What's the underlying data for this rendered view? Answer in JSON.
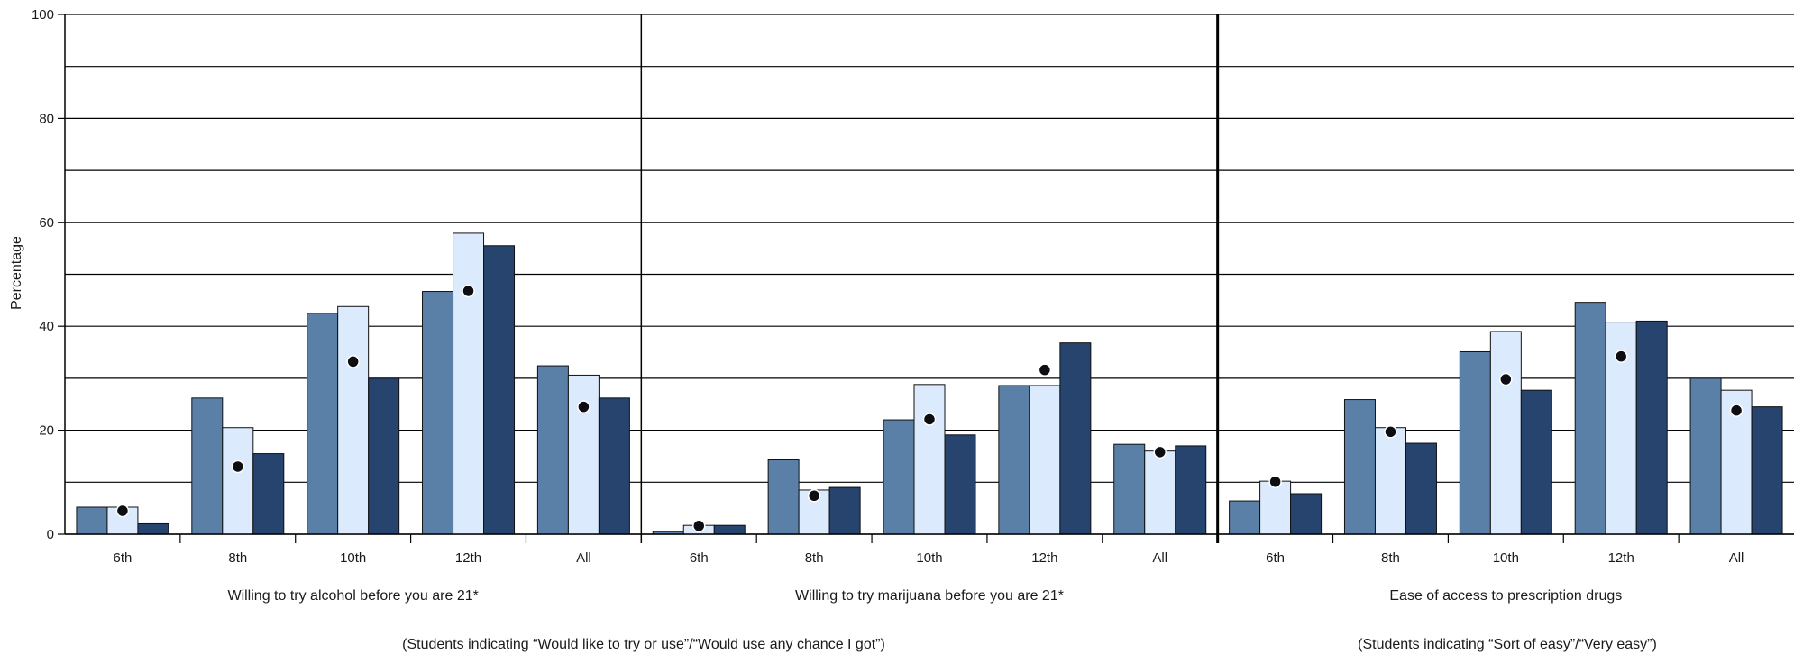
{
  "chart_data": {
    "type": "bar",
    "ylabel": "Percentage",
    "ylim": [
      0,
      100
    ],
    "yticks": [
      0,
      20,
      40,
      60,
      80,
      100
    ],
    "grid": true,
    "colors": [
      "#5b80a8",
      "#dbeafc",
      "#26446d"
    ],
    "marker_color": "#0d0d12",
    "categories": [
      "6th",
      "8th",
      "10th",
      "12th",
      "All"
    ],
    "panels": [
      {
        "title": "Willing to try alcohol before you are 21*",
        "series": [
          {
            "values": [
              5.2,
              26.2,
              42.5,
              46.7,
              32.4
            ]
          },
          {
            "values": [
              5.2,
              20.5,
              43.8,
              57.9,
              30.6
            ]
          },
          {
            "values": [
              2.0,
              15.5,
              30.0,
              55.5,
              26.2
            ]
          }
        ],
        "markers": [
          4.5,
          13.0,
          33.2,
          46.8,
          24.5
        ]
      },
      {
        "title": "Willing to try marijuana before you are 21*",
        "series": [
          {
            "values": [
              0.5,
              14.3,
              22.0,
              28.6,
              17.3
            ]
          },
          {
            "values": [
              1.7,
              8.5,
              28.8,
              28.6,
              16.0
            ]
          },
          {
            "values": [
              1.7,
              9.0,
              19.1,
              36.8,
              17.0
            ]
          }
        ],
        "markers": [
          1.6,
          7.4,
          22.1,
          31.6,
          15.8
        ]
      },
      {
        "title": "Ease of access to prescription drugs",
        "series": [
          {
            "values": [
              6.4,
              25.9,
              35.1,
              44.6,
              30.0
            ]
          },
          {
            "values": [
              10.2,
              20.5,
              39.0,
              40.8,
              27.7
            ]
          },
          {
            "values": [
              7.8,
              17.5,
              27.7,
              41.0,
              24.5
            ]
          }
        ],
        "markers": [
          10.1,
          19.7,
          29.8,
          34.2,
          23.8
        ]
      }
    ],
    "subtitles": [
      "(Students indicating “Would like to try or use”/“Would use any chance I got”)",
      "(Students indicating “Sort of easy”/“Very easy”)"
    ]
  }
}
